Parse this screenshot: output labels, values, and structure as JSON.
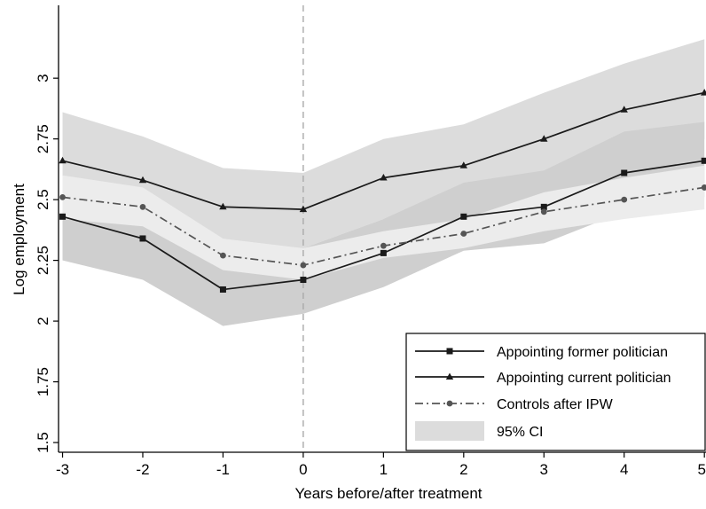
{
  "chart_data": {
    "type": "line",
    "title": "",
    "xlabel": "Years before/after treatment",
    "ylabel": "Log employment",
    "x": [
      -3,
      -2,
      -1,
      0,
      1,
      2,
      3,
      4,
      5
    ],
    "x_tick_labels": [
      "-3",
      "-2",
      "-1",
      "0",
      "1",
      "2",
      "3",
      "4",
      "5"
    ],
    "y_ticks": [
      1.5,
      1.75,
      2,
      2.25,
      2.5,
      2.75,
      3
    ],
    "y_tick_labels": [
      "1.5",
      "1.75",
      "2",
      "2.25",
      "2.5",
      "2.75",
      "3"
    ],
    "xlim": [
      -3.05,
      5.02
    ],
    "ylim": [
      1.46,
      3.3
    ],
    "reference_line_x": 0,
    "grid": false,
    "legend_position": "bottom-right",
    "series": [
      {
        "name": "Appointing former politician",
        "marker": "square",
        "style": "solid",
        "color": "#1a1a1a",
        "values": [
          2.43,
          2.34,
          2.13,
          2.17,
          2.28,
          2.43,
          2.47,
          2.61,
          2.66
        ],
        "ci_lower": [
          2.25,
          2.17,
          1.98,
          2.03,
          2.14,
          2.29,
          2.32,
          2.45,
          2.51
        ],
        "ci_upper": [
          2.6,
          2.53,
          2.34,
          2.3,
          2.42,
          2.57,
          2.62,
          2.78,
          2.82
        ]
      },
      {
        "name": "Appointing current politician",
        "marker": "triangle",
        "style": "solid",
        "color": "#1a1a1a",
        "values": [
          2.66,
          2.58,
          2.47,
          2.46,
          2.59,
          2.64,
          2.75,
          2.87,
          2.94
        ],
        "ci_lower": [
          2.47,
          2.41,
          2.33,
          2.3,
          2.42,
          2.48,
          2.58,
          2.69,
          2.75
        ],
        "ci_upper": [
          2.86,
          2.76,
          2.63,
          2.61,
          2.75,
          2.81,
          2.94,
          3.06,
          3.16
        ]
      },
      {
        "name": "Controls after IPW",
        "marker": "circle",
        "style": "dashdot",
        "color": "#555555",
        "values": [
          2.51,
          2.47,
          2.27,
          2.23,
          2.31,
          2.36,
          2.45,
          2.5,
          2.55
        ],
        "ci_lower": [
          2.42,
          2.39,
          2.21,
          2.17,
          2.26,
          2.3,
          2.37,
          2.42,
          2.46
        ],
        "ci_upper": [
          2.6,
          2.55,
          2.34,
          2.3,
          2.37,
          2.42,
          2.53,
          2.59,
          2.64
        ]
      }
    ],
    "legend": [
      {
        "label": "Appointing former politician",
        "kind": "line",
        "marker": "square"
      },
      {
        "label": "Appointing current politician",
        "kind": "line",
        "marker": "triangle"
      },
      {
        "label": "Controls after IPW",
        "kind": "dashdot",
        "marker": "circle"
      },
      {
        "label": "95% CI",
        "kind": "area"
      }
    ],
    "colors": {
      "ci_current": "#dcdcdc",
      "ci_former": "#cfcfcf",
      "ci_controls": "#ececec",
      "line": "#1a1a1a",
      "controls_line": "#555555",
      "refline": "#aaaaaa",
      "legend_ci": "#dcdcdc"
    }
  }
}
